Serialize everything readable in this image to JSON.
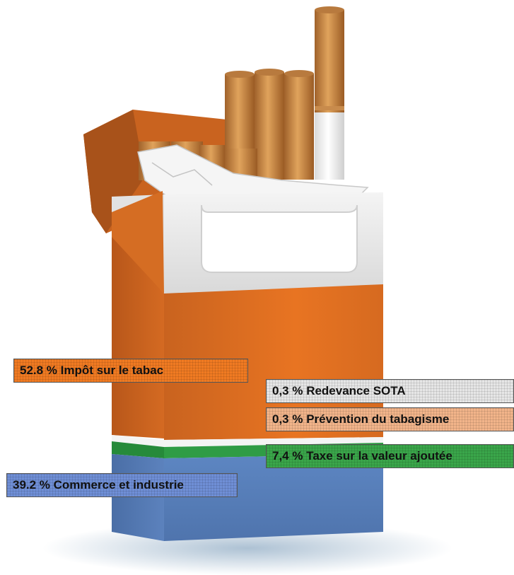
{
  "chart_data": {
    "type": "table",
    "title": "",
    "series": [
      {
        "label": "52.8 % Impôt sur le tabac",
        "value": 52.8,
        "color": "#f07a22"
      },
      {
        "label": "0,3 % Redevance SOTA",
        "value": 0.3,
        "color": "#e6e6e6"
      },
      {
        "label": "0,3 % Prévention du tabagisme",
        "value": 0.3,
        "color": "#f2b48a"
      },
      {
        "label": "7,4 % Taxe sur la valeur ajoutée",
        "value": 7.4,
        "color": "#3aa64a"
      },
      {
        "label": "39.2 % Commerce et industrie",
        "value": 39.2,
        "color": "#6f8fd6"
      }
    ]
  }
}
